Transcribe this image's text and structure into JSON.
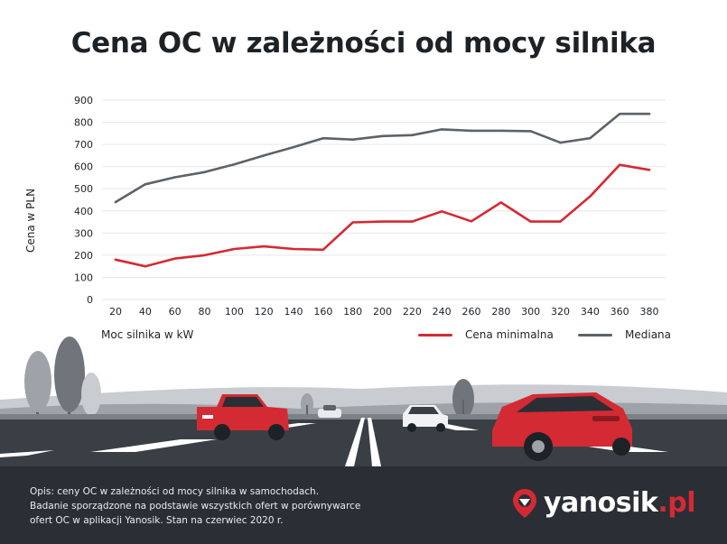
{
  "colors": {
    "min_series": "#d42a33",
    "median_series": "#5c6369",
    "grid": "#e6e6e6",
    "footer_bg": "#2a2f35",
    "accent": "#d42a33"
  },
  "chart_data": {
    "type": "line",
    "title": "Cena OC w zależności od mocy silnika",
    "xlabel": "Moc silnika w kW",
    "ylabel": "Cena w PLN",
    "x": [
      20,
      40,
      60,
      80,
      100,
      120,
      140,
      160,
      180,
      200,
      220,
      240,
      260,
      280,
      300,
      320,
      340,
      360,
      380
    ],
    "ylim": [
      0,
      900
    ],
    "yticks": [
      0,
      100,
      200,
      300,
      400,
      500,
      600,
      700,
      800,
      900
    ],
    "grid": true,
    "legend": "bottom-right",
    "series": [
      {
        "name": "Cena minimalna",
        "color": "#d42a33",
        "values": [
          180,
          150,
          185,
          200,
          228,
          240,
          228,
          225,
          348,
          352,
          352,
          398,
          353,
          438,
          352,
          352,
          465,
          608,
          585
        ]
      },
      {
        "name": "Mediana",
        "color": "#5c6369",
        "values": [
          440,
          520,
          552,
          575,
          610,
          650,
          688,
          728,
          722,
          738,
          742,
          768,
          762,
          762,
          760,
          708,
          728,
          838,
          838
        ]
      }
    ]
  },
  "footer": {
    "note_line1": "Opis: ceny OC w zależności od mocy silnika w samochodach.",
    "note_line2": "Badanie sporządzone na podstawie wszystkich ofert w porównywarce",
    "note_line3": "ofert OC w aplikacji Yanosik. Stan na czerwiec 2020 r.",
    "logo_main": "yanosik",
    "logo_suffix": ".pl"
  }
}
